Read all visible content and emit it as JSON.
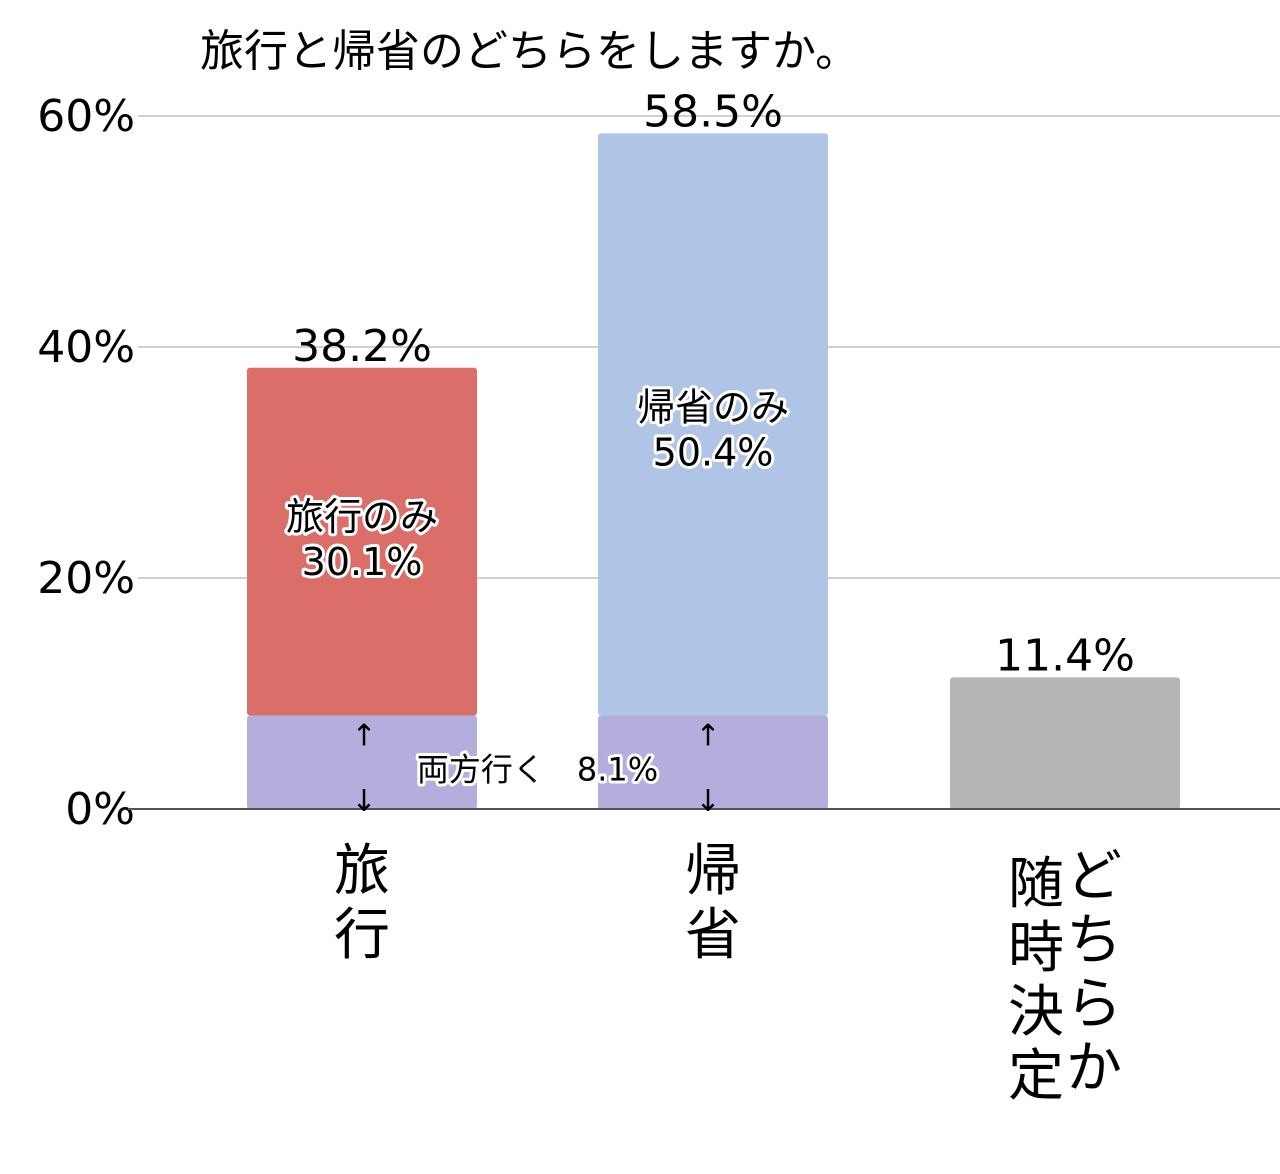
{
  "chart_data": {
    "type": "bar",
    "stacked": true,
    "title": "旅行と帰省のどちらをしますか。",
    "ylim": [
      0,
      60
    ],
    "yticks": [
      0,
      20,
      40,
      60
    ],
    "ytick_labels": [
      "0%",
      "20%",
      "40%",
      "60%"
    ],
    "grid": true,
    "legend": "none",
    "categories": [
      "旅行",
      "帰省",
      "どちらか随時決定"
    ],
    "category_columns": [
      [
        "旅行"
      ],
      [
        "帰省"
      ],
      [
        "どちらか",
        "随時決定"
      ]
    ],
    "totals": [
      38.2,
      58.5,
      11.4
    ],
    "total_labels": [
      "38.2%",
      "58.5%",
      "11.4%"
    ],
    "segments": [
      [
        {
          "value": 8.1,
          "color": "#b4aedc"
        },
        {
          "value": 30.1,
          "color": "#db6e68",
          "label": [
            "旅行のみ",
            "30.1%"
          ]
        }
      ],
      [
        {
          "value": 8.1,
          "color": "#b4aedc"
        },
        {
          "value": 50.4,
          "color": "#b0c4e6",
          "label": [
            "帰省のみ",
            "50.4%"
          ]
        }
      ],
      [
        {
          "value": 11.4,
          "color": "#b5b5b5"
        }
      ]
    ],
    "shared_annotation": {
      "text": "両方行く　8.1%",
      "value": 8.1,
      "arrow_up": "↑",
      "arrow_down": "↓"
    },
    "colors": {
      "gridline": "#d0d0d0",
      "axis": "#555555",
      "text": "#000000"
    }
  }
}
